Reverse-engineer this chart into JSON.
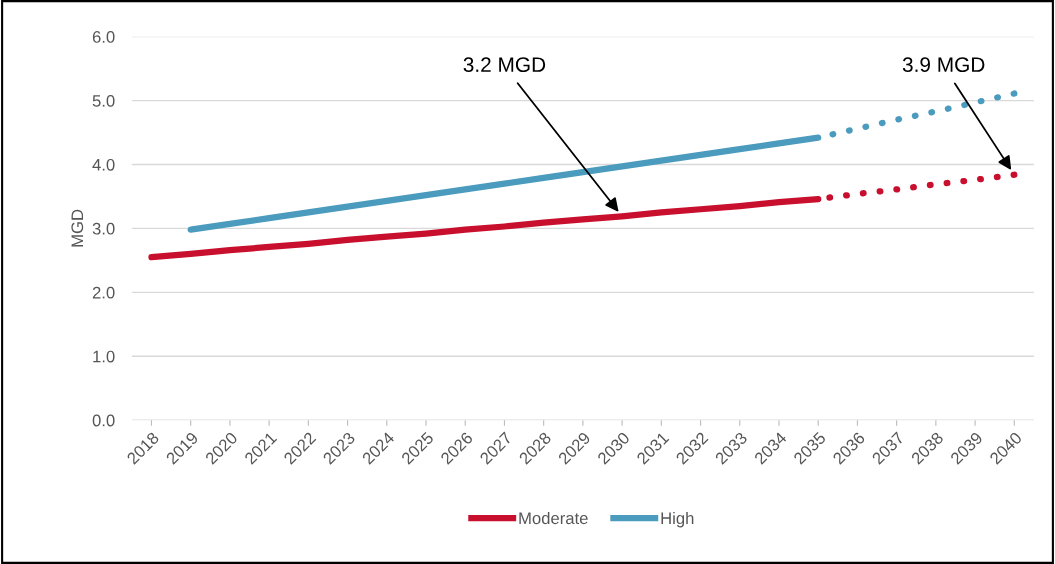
{
  "chart_data": {
    "type": "line",
    "ylabel": "MGD",
    "categories": [
      "2018",
      "2019",
      "2020",
      "2021",
      "2022",
      "2023",
      "2024",
      "2025",
      "2026",
      "2027",
      "2028",
      "2029",
      "2030",
      "2031",
      "2032",
      "2033",
      "2034",
      "2035",
      "2036",
      "2037",
      "2038",
      "2039",
      "2040"
    ],
    "series": [
      {
        "name": "Moderate",
        "color": "#c8102e",
        "line_style": "solid",
        "values": [
          2.55,
          2.6,
          2.66,
          2.71,
          2.76,
          2.82,
          2.87,
          2.92,
          2.98,
          3.03,
          3.09,
          3.14,
          3.19,
          3.25,
          3.3,
          3.35,
          3.41,
          3.46,
          null,
          null,
          null,
          null,
          null
        ]
      },
      {
        "name": "High",
        "color": "#4a9bbd",
        "line_style": "solid",
        "values": [
          null,
          2.98,
          3.07,
          3.16,
          3.25,
          3.34,
          3.43,
          3.52,
          3.61,
          3.7,
          3.79,
          3.88,
          3.97,
          4.06,
          4.15,
          4.24,
          4.33,
          4.42,
          null,
          null,
          null,
          null,
          null
        ]
      },
      {
        "color": "#c8102e",
        "line_style": "dotted",
        "values": [
          null,
          null,
          null,
          null,
          null,
          null,
          null,
          null,
          null,
          null,
          null,
          null,
          null,
          null,
          null,
          null,
          null,
          3.46,
          3.54,
          3.61,
          3.69,
          3.76,
          3.84
        ]
      },
      {
        "color": "#4a9bbd",
        "line_style": "dotted",
        "values": [
          null,
          null,
          null,
          null,
          null,
          null,
          null,
          null,
          null,
          null,
          null,
          null,
          null,
          null,
          null,
          null,
          null,
          4.42,
          4.56,
          4.7,
          4.83,
          4.97,
          5.11
        ]
      }
    ],
    "ylim": [
      0,
      6
    ],
    "yticks": [
      {
        "value": 0,
        "label": "0.0"
      },
      {
        "value": 1,
        "label": "1.0"
      },
      {
        "value": 2,
        "label": "2.0"
      },
      {
        "value": 3,
        "label": "3.0"
      },
      {
        "value": 4,
        "label": "4.0"
      },
      {
        "value": 5,
        "label": "5.0"
      },
      {
        "value": 6,
        "label": "6.0"
      }
    ],
    "grid": "y",
    "legend": "bottom",
    "marker": "none",
    "annotations": [
      {
        "text": "3.2 MGD",
        "x": "2030",
        "y": 3.19
      },
      {
        "text": "3.9 MGD",
        "x": "2040",
        "y": 3.84
      }
    ]
  }
}
